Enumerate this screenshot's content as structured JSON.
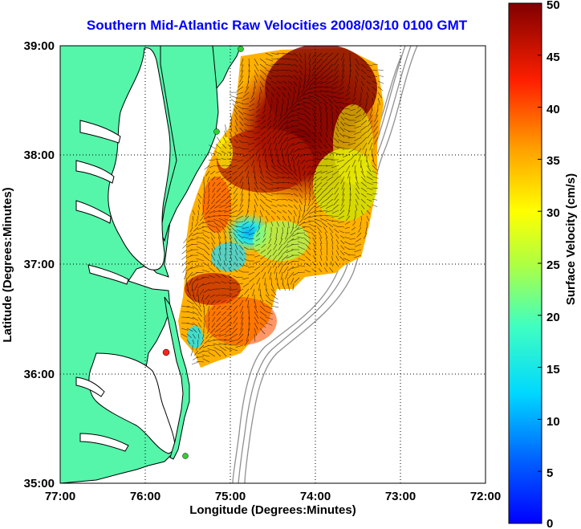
{
  "title": "Southern Mid-Atlantic Raw Velocities 2008/03/10 0100 GMT",
  "x_axis": {
    "label": "Longitude (Degrees:Minutes)",
    "ticks": [
      "77:00",
      "76:00",
      "75:00",
      "74:00",
      "73:00",
      "72:00"
    ],
    "range": [
      -77,
      -72
    ]
  },
  "y_axis": {
    "label": "Latitude (Degrees:Minutes)",
    "ticks": [
      "39:00",
      "38:00",
      "37:00",
      "36:00",
      "35:00"
    ],
    "range": [
      35,
      39
    ]
  },
  "colorbar": {
    "label": "Surface Velocity (cm/s)",
    "ticks": [
      "50",
      "45",
      "40",
      "35",
      "30",
      "25",
      "20",
      "15",
      "10",
      "5",
      "0"
    ],
    "range": [
      0,
      50
    ]
  },
  "colors": {
    "land": "#55f5aa",
    "coastline": "#000000",
    "bathymetry": "#909090",
    "title": "#0000ff",
    "station_red": "#ff2020",
    "station_green": "#30d030"
  }
}
